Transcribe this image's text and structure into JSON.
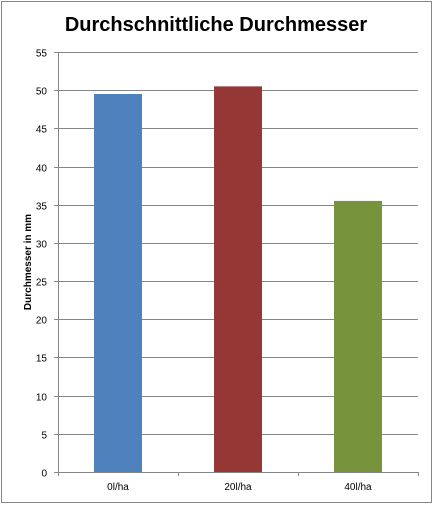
{
  "chart_data": {
    "type": "bar",
    "title": "Durchschnittliche Durchmesser",
    "xlabel": "",
    "ylabel": "Durchmesser in mm",
    "categories": [
      "0l/ha",
      "20l/ha",
      "40l/ha"
    ],
    "values": [
      49.5,
      50.5,
      35.5
    ],
    "colors": [
      "#4f81bd",
      "#953735",
      "#77933c"
    ],
    "ylim": [
      0,
      55
    ],
    "yticks": [
      0,
      5,
      10,
      15,
      20,
      25,
      30,
      35,
      40,
      45,
      50,
      55
    ],
    "grid": true,
    "legend": "none"
  }
}
